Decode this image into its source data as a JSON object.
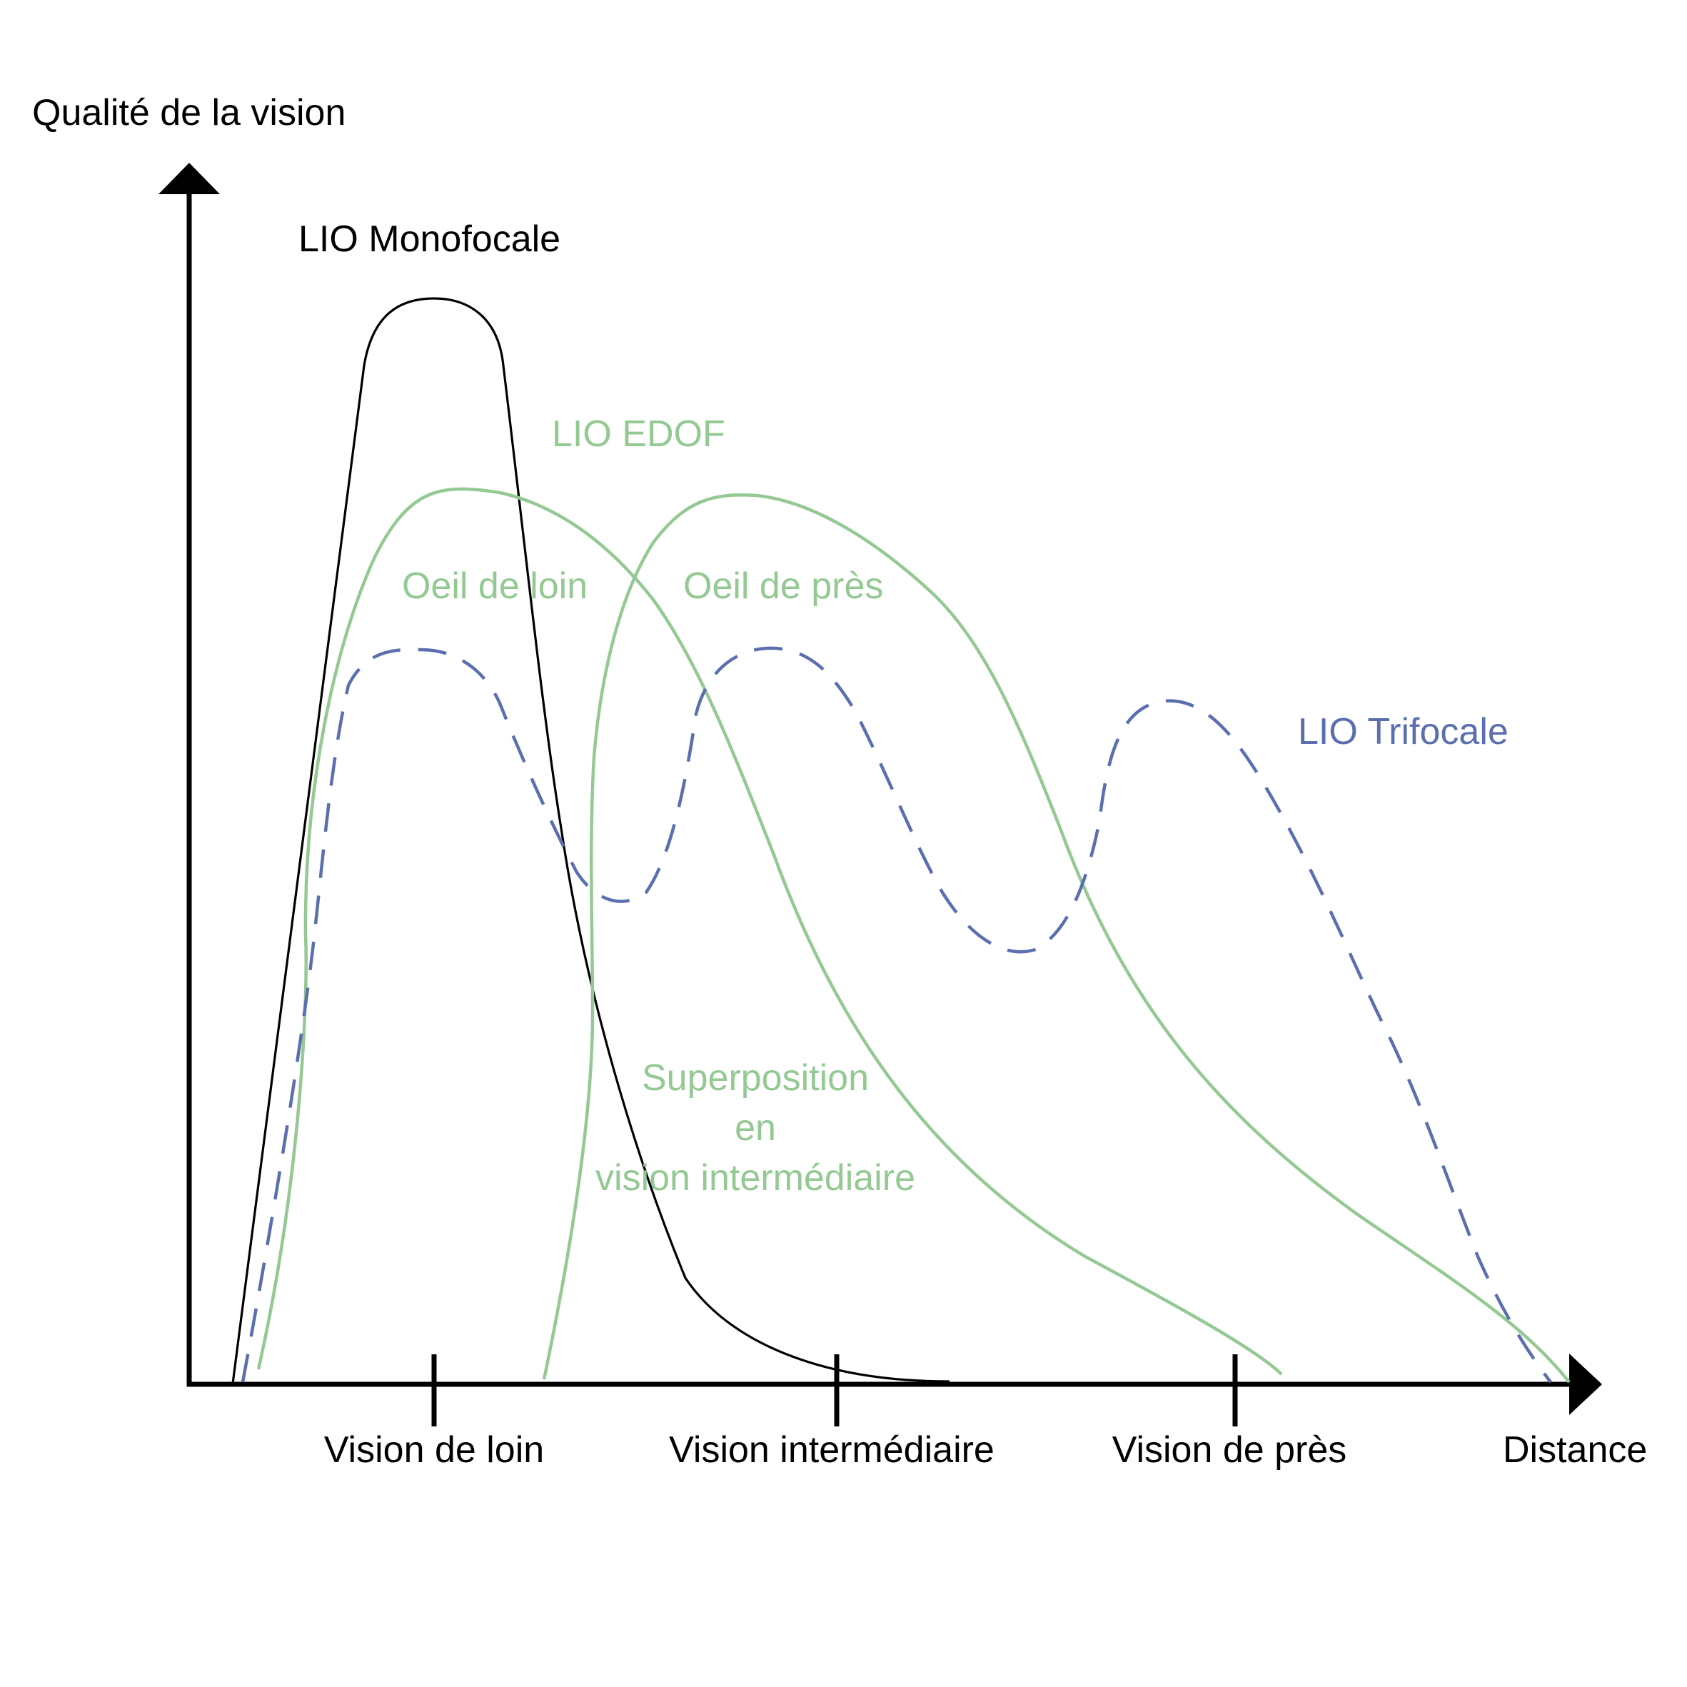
{
  "chart_data": {
    "type": "line",
    "title": "",
    "ylabel": "Qualité de la vision",
    "xlabel": "Distance",
    "categories": [
      "Vision de loin",
      "Vision intermédiaire",
      "Vision de près"
    ],
    "grid": false,
    "colors": {
      "axis": "#000000",
      "monofocale": "#000000",
      "edof": "#94c993",
      "trifocale": "#5b6fb0"
    },
    "series_labels": {
      "monofocale": "LIO Monofocale",
      "edof": "LIO EDOF",
      "trifocale": "LIO Trifocale"
    },
    "annotations": {
      "oeil_loin": "Oeil de loin",
      "oeil_pres": "Oeil de près",
      "superposition_line1": "Superposition",
      "superposition_line2": "en",
      "superposition_line3": "vision intermédiaire"
    }
  }
}
